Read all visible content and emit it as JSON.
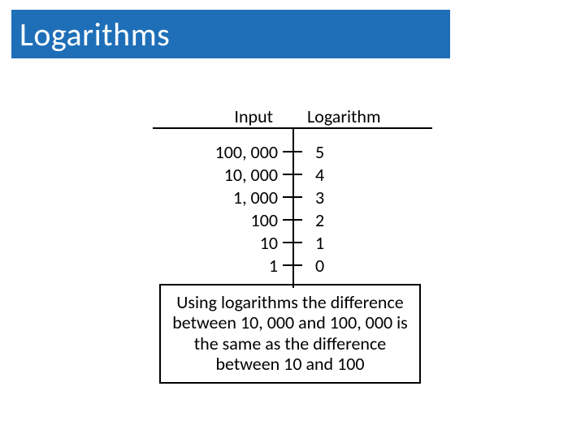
{
  "title": {
    "text": "Logarithms",
    "bar_color": "#1f6fb8",
    "text_color": "#ffffff",
    "fontsize": 40
  },
  "table": {
    "header_left": "Input",
    "header_right": "Logarithm",
    "rows": [
      {
        "input": "100, 000",
        "log": "5"
      },
      {
        "input": "10, 000",
        "log": "4"
      },
      {
        "input": "1, 000",
        "log": "3"
      },
      {
        "input": "100",
        "log": "2"
      },
      {
        "input": "10",
        "log": "1"
      },
      {
        "input": "1",
        "log": "0"
      }
    ],
    "fontsize": 22,
    "line_color": "#000000"
  },
  "caption": {
    "text": "Using logarithms the difference between 10, 000 and 100, 000 is the same as the difference between 10 and 100",
    "border_color": "#000000",
    "fontsize": 22
  },
  "background_color": "#ffffff"
}
